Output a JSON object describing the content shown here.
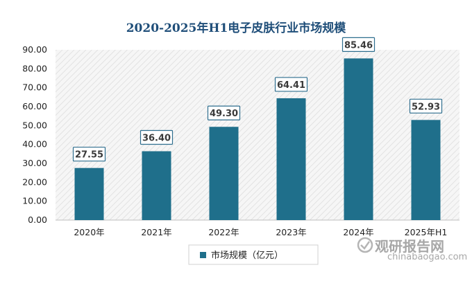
{
  "chart_data": {
    "type": "bar",
    "title": "2020-2025年H1电子皮肤行业市场规模",
    "categories": [
      "2020年",
      "2021年",
      "2022年",
      "2023年",
      "2024年",
      "2025年H1"
    ],
    "series": [
      {
        "name": "市场规模（亿元）",
        "values": [
          27.55,
          36.4,
          49.3,
          64.41,
          85.46,
          52.93
        ],
        "color": "#1f6f8b"
      }
    ],
    "value_labels": [
      "27.55",
      "36.40",
      "49.30",
      "64.41",
      "85.46",
      "52.93"
    ],
    "ylim": [
      0,
      90
    ],
    "yticks": [
      "0.00",
      "10.00",
      "20.00",
      "30.00",
      "40.00",
      "50.00",
      "60.00",
      "70.00",
      "80.00",
      "90.00"
    ],
    "xlabel": "",
    "ylabel": "",
    "grid": true,
    "legend_position": "bottom"
  },
  "watermark": {
    "logo_text": "观研报告网",
    "url_text": "chinabaogao.com"
  }
}
